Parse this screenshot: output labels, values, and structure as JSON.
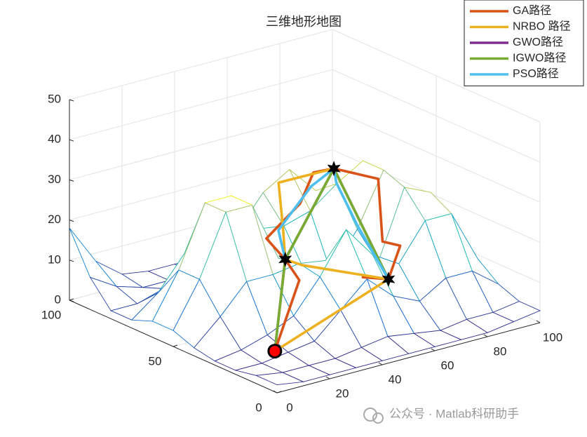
{
  "chart_data": {
    "type": "mesh3d",
    "title": "三维地形地图",
    "watermark": "公众号 · Matlab科研助手",
    "x": [
      0,
      10,
      20,
      30,
      40,
      50,
      60,
      70,
      80,
      90,
      100
    ],
    "y": [
      0,
      10,
      20,
      30,
      40,
      50,
      60,
      70,
      80,
      90,
      100
    ],
    "z": [
      [
        2,
        1,
        1,
        1,
        1,
        1,
        1,
        1,
        1,
        2,
        3
      ],
      [
        2,
        1,
        1,
        1,
        2,
        3,
        2,
        1,
        2,
        2,
        3
      ],
      [
        1,
        1,
        2,
        3,
        9,
        15,
        9,
        6,
        10,
        10,
        5
      ],
      [
        1,
        2,
        4,
        7,
        15,
        25,
        17,
        13,
        22,
        22,
        9
      ],
      [
        2,
        8,
        15,
        15,
        16,
        15,
        11,
        11,
        28,
        25,
        10
      ],
      [
        4,
        15,
        30,
        30,
        15,
        10,
        8,
        17,
        30,
        22,
        8
      ],
      [
        4,
        15,
        30,
        30,
        20,
        19,
        21,
        26,
        30,
        20,
        6
      ],
      [
        2,
        7,
        15,
        16,
        17,
        25,
        29,
        22,
        20,
        13,
        4
      ],
      [
        2,
        2,
        4,
        4,
        6,
        15,
        15,
        9,
        6,
        4,
        2
      ],
      [
        8,
        4,
        2,
        2,
        2,
        4,
        4,
        2,
        2,
        2,
        2
      ],
      [
        18,
        8,
        3,
        2,
        2,
        2,
        2,
        2,
        2,
        2,
        2
      ]
    ],
    "xlim": [
      0,
      100
    ],
    "ylim": [
      0,
      100
    ],
    "zlim": [
      0,
      50
    ],
    "xticks": [
      0,
      20,
      40,
      60,
      80,
      100
    ],
    "yticks": [
      0,
      50,
      100
    ],
    "zticks": [
      0,
      10,
      20,
      30,
      40,
      50
    ],
    "grid": true,
    "legend": "upper right",
    "start": {
      "x": 11,
      "y": 15,
      "z": 5,
      "color": "#ff0000"
    },
    "targets": {
      "x": [
        41,
        55,
        69
      ],
      "y": [
        48,
        16,
        60
      ],
      "z": [
        15,
        15,
        30
      ],
      "color": "#000000"
    },
    "series": [
      {
        "name": "GA路径",
        "color": "#d95319",
        "x": [
          11,
          44,
          41,
          37,
          53,
          62,
          69,
          74,
          63,
          65,
          55,
          50
        ],
        "y": [
          15,
          45,
          48,
          52,
          56,
          61,
          60,
          45,
          29,
          23,
          16,
          22
        ],
        "z": [
          5,
          10,
          15,
          20,
          25,
          30,
          30,
          30,
          20,
          20,
          15,
          15
        ]
      },
      {
        "name": "NRBO 路径",
        "color": "#edb120",
        "x": [
          11,
          55,
          42,
          41,
          45,
          59,
          69
        ],
        "y": [
          15,
          16,
          41,
          48,
          54,
          74,
          60
        ],
        "z": [
          5,
          15,
          15,
          15,
          20,
          25,
          30
        ]
      },
      {
        "name": "GWO路径",
        "color": "#7e2f8e",
        "x": [
          11,
          41,
          69,
          55
        ],
        "y": [
          15,
          48,
          60,
          16
        ],
        "z": [
          5,
          15,
          30,
          15
        ]
      },
      {
        "name": "IGWO路径",
        "color": "#77ac30",
        "x": [
          11,
          41,
          69,
          55
        ],
        "y": [
          15,
          48,
          60,
          16
        ],
        "z": [
          5,
          15,
          30,
          15
        ]
      },
      {
        "name": "PSO路径",
        "color": "#4dbeee",
        "x": [
          41,
          40,
          54,
          69,
          62,
          55,
          55
        ],
        "y": [
          48,
          50,
          52,
          60,
          50,
          31,
          16
        ],
        "z": [
          15,
          22,
          30,
          30,
          30,
          25,
          15
        ]
      }
    ]
  }
}
